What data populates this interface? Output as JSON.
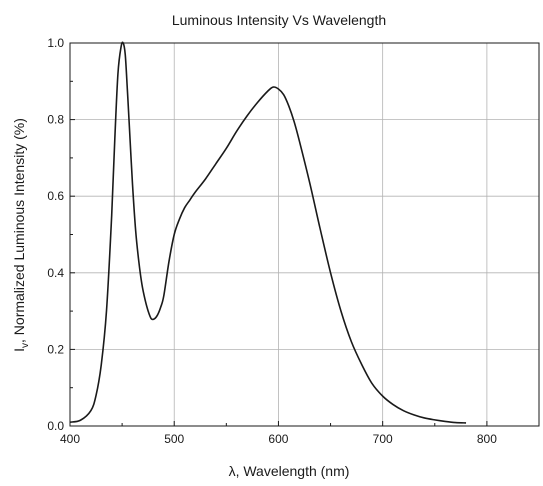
{
  "chart_data": {
    "type": "line",
    "title": "Luminous Intensity Vs Wavelength",
    "xlabel": "λ, Wavelength (nm)",
    "ylabel": "Iv, Normalized Luminous Intensity (%)",
    "ylabel_parts": {
      "symbol": "I",
      "subscript": "v",
      "rest": ", Normalized Luminous Intensity (%)"
    },
    "xlim": [
      400,
      850
    ],
    "ylim": [
      0,
      1.0
    ],
    "x_ticks": [
      400,
      500,
      600,
      700,
      800
    ],
    "x_tick_labels": [
      "400",
      "500",
      "600",
      "700",
      "800"
    ],
    "y_ticks": [
      0.0,
      0.2,
      0.4,
      0.6,
      0.8,
      1.0
    ],
    "y_tick_labels": [
      "0.0",
      "0.2",
      "0.4",
      "0.6",
      "0.8",
      "1.0"
    ],
    "grid": true,
    "line_color": "#1a1a1a",
    "series": [
      {
        "x": [
          400,
          410,
          420,
          425,
          430,
          435,
          440,
          443,
          446,
          449,
          451,
          453,
          455,
          457,
          460,
          463,
          466,
          469,
          472,
          475,
          478,
          481,
          484,
          487,
          490,
          495,
          500,
          505,
          510,
          515,
          520,
          530,
          540,
          550,
          560,
          570,
          580,
          590,
          595,
          600,
          605,
          610,
          615,
          620,
          630,
          640,
          650,
          660,
          670,
          680,
          690,
          700,
          710,
          720,
          730,
          740,
          750,
          760,
          770,
          780
        ],
        "y": [
          0.01,
          0.015,
          0.04,
          0.08,
          0.16,
          0.3,
          0.55,
          0.75,
          0.92,
          0.99,
          1.0,
          0.97,
          0.88,
          0.78,
          0.63,
          0.51,
          0.43,
          0.37,
          0.33,
          0.3,
          0.28,
          0.28,
          0.29,
          0.31,
          0.34,
          0.43,
          0.5,
          0.54,
          0.57,
          0.59,
          0.61,
          0.645,
          0.685,
          0.725,
          0.77,
          0.81,
          0.845,
          0.875,
          0.885,
          0.88,
          0.865,
          0.835,
          0.795,
          0.745,
          0.635,
          0.515,
          0.4,
          0.3,
          0.22,
          0.16,
          0.11,
          0.078,
          0.056,
          0.04,
          0.029,
          0.021,
          0.016,
          0.012,
          0.009,
          0.008
        ]
      }
    ]
  }
}
